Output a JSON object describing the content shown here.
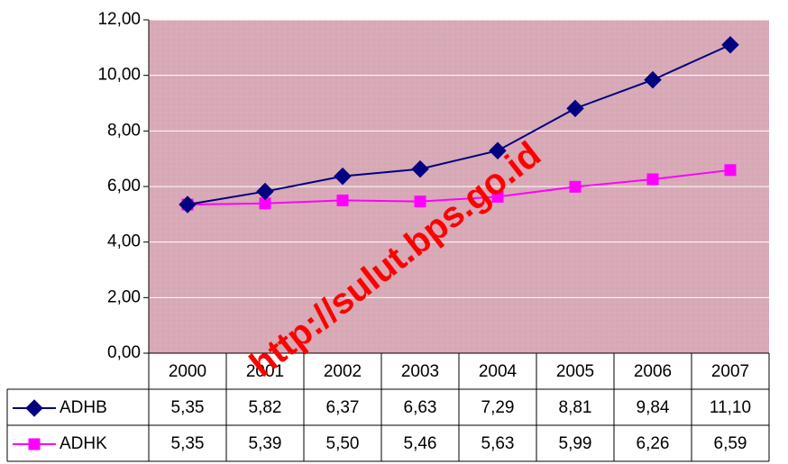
{
  "chart_data": {
    "type": "line",
    "categories": [
      "2000",
      "2001",
      "2002",
      "2003",
      "2004",
      "2005",
      "2006",
      "2007"
    ],
    "series": [
      {
        "name": "ADHB",
        "color": "#000080",
        "marker": "diamond",
        "values": [
          5.35,
          5.82,
          6.37,
          6.63,
          7.29,
          8.81,
          9.84,
          11.1
        ],
        "value_labels": [
          "5,35",
          "5,82",
          "6,37",
          "6,63",
          "7,29",
          "8,81",
          "9,84",
          "11,10"
        ]
      },
      {
        "name": "ADHK",
        "color": "#ff00ff",
        "marker": "square",
        "values": [
          5.35,
          5.39,
          5.5,
          5.46,
          5.63,
          5.99,
          6.26,
          6.59
        ],
        "value_labels": [
          "5,35",
          "5,39",
          "5,50",
          "5,46",
          "5,63",
          "5,99",
          "6,26",
          "6,59"
        ]
      }
    ],
    "ylim": [
      0,
      12
    ],
    "yticks": [
      {
        "value": 0,
        "label": "0,00"
      },
      {
        "value": 2,
        "label": "2,00"
      },
      {
        "value": 4,
        "label": "4,00"
      },
      {
        "value": 6,
        "label": "6,00"
      },
      {
        "value": 8,
        "label": "8,00"
      },
      {
        "value": 10,
        "label": "10,00"
      },
      {
        "value": 12,
        "label": "12,00"
      }
    ],
    "grid": true,
    "plot_background": "#d8a9b6",
    "watermark": "http://sulut.bps.go.id"
  }
}
